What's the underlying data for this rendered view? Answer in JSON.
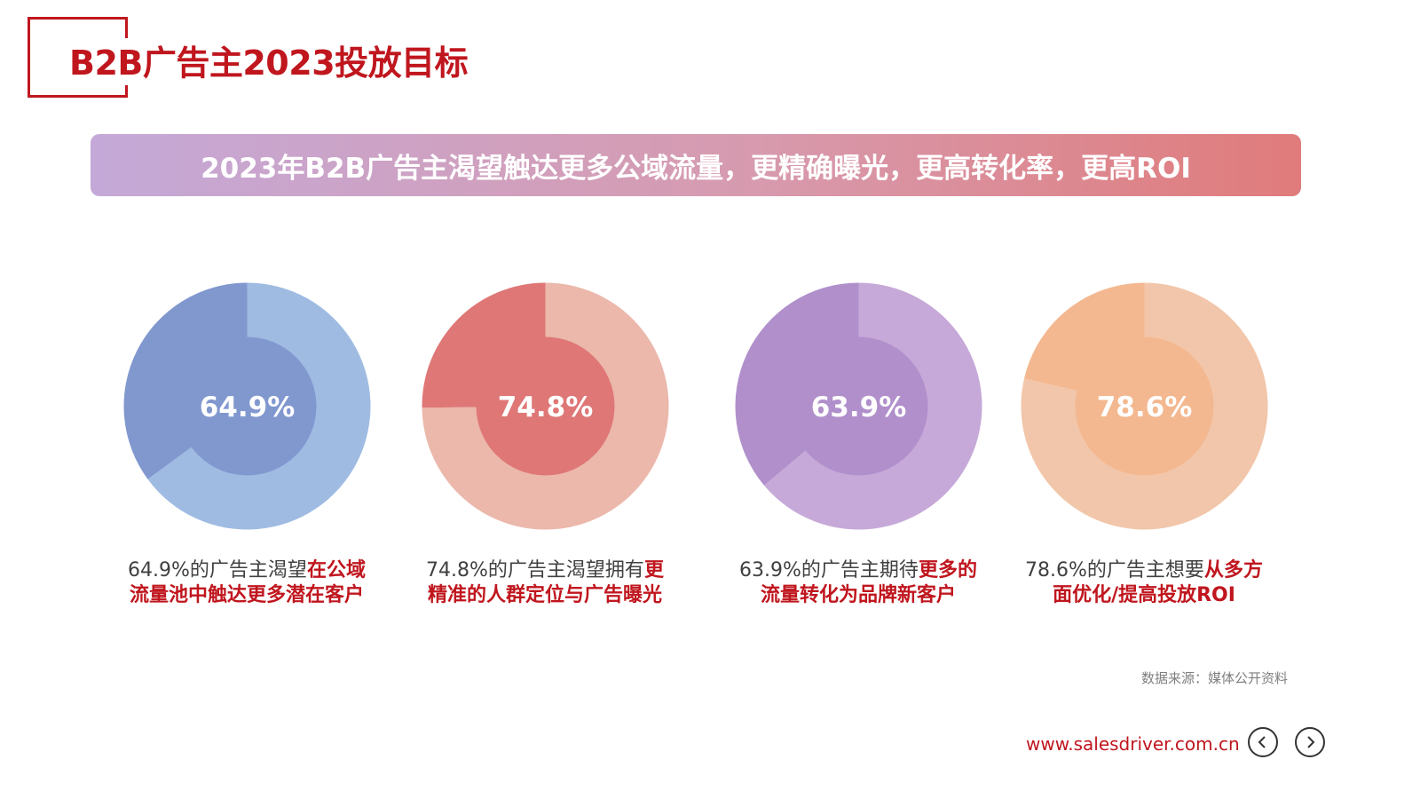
{
  "title": "B2B广告主2023投放目标",
  "banner": "2023年B2B广告主渴望触达更多公域流量，更精确曝光，更高转化率，更高ROI",
  "chart_data": [
    {
      "type": "pie",
      "value_label": "64.9%",
      "values": [
        64.9,
        35.1
      ],
      "colors": {
        "main": "#9fbbe2",
        "rest": "#8198cf"
      },
      "caption_plain": "64.9%的广告主渴望",
      "caption_highlight_1": "在公域",
      "caption_highlight_2": "流量池中触达更多潜在客户"
    },
    {
      "type": "pie",
      "value_label": "74.8%",
      "values": [
        74.8,
        25.2
      ],
      "colors": {
        "main": "#ebb8ab",
        "rest": "#df7777"
      },
      "caption_plain": "74.8%的广告主渴望拥有",
      "caption_highlight_1": "更",
      "caption_highlight_2": "精准的人群定位与广告曝光"
    },
    {
      "type": "pie",
      "value_label": "63.9%",
      "values": [
        63.9,
        36.1
      ],
      "colors": {
        "main": "#c6a9d8",
        "rest": "#b08fcb"
      },
      "caption_plain": "63.9%的广告主期待",
      "caption_highlight_1": "更多的",
      "caption_highlight_2": "流量转化为品牌新客户"
    },
    {
      "type": "pie",
      "value_label": "78.6%",
      "values": [
        78.6,
        21.4
      ],
      "colors": {
        "main": "#f2c6aa",
        "rest": "#f3b890"
      },
      "caption_plain": "78.6%的广告主想要",
      "caption_highlight_1": "从多方",
      "caption_highlight_2": "面优化/提高投放ROI"
    }
  ],
  "source": "数据来源：媒体公开资料",
  "url": "www.salesdriver.com.cn",
  "nav": {
    "prev_icon": "chevron-left-icon",
    "next_icon": "chevron-right-icon"
  },
  "colors": {
    "accent": "#c0161e"
  }
}
